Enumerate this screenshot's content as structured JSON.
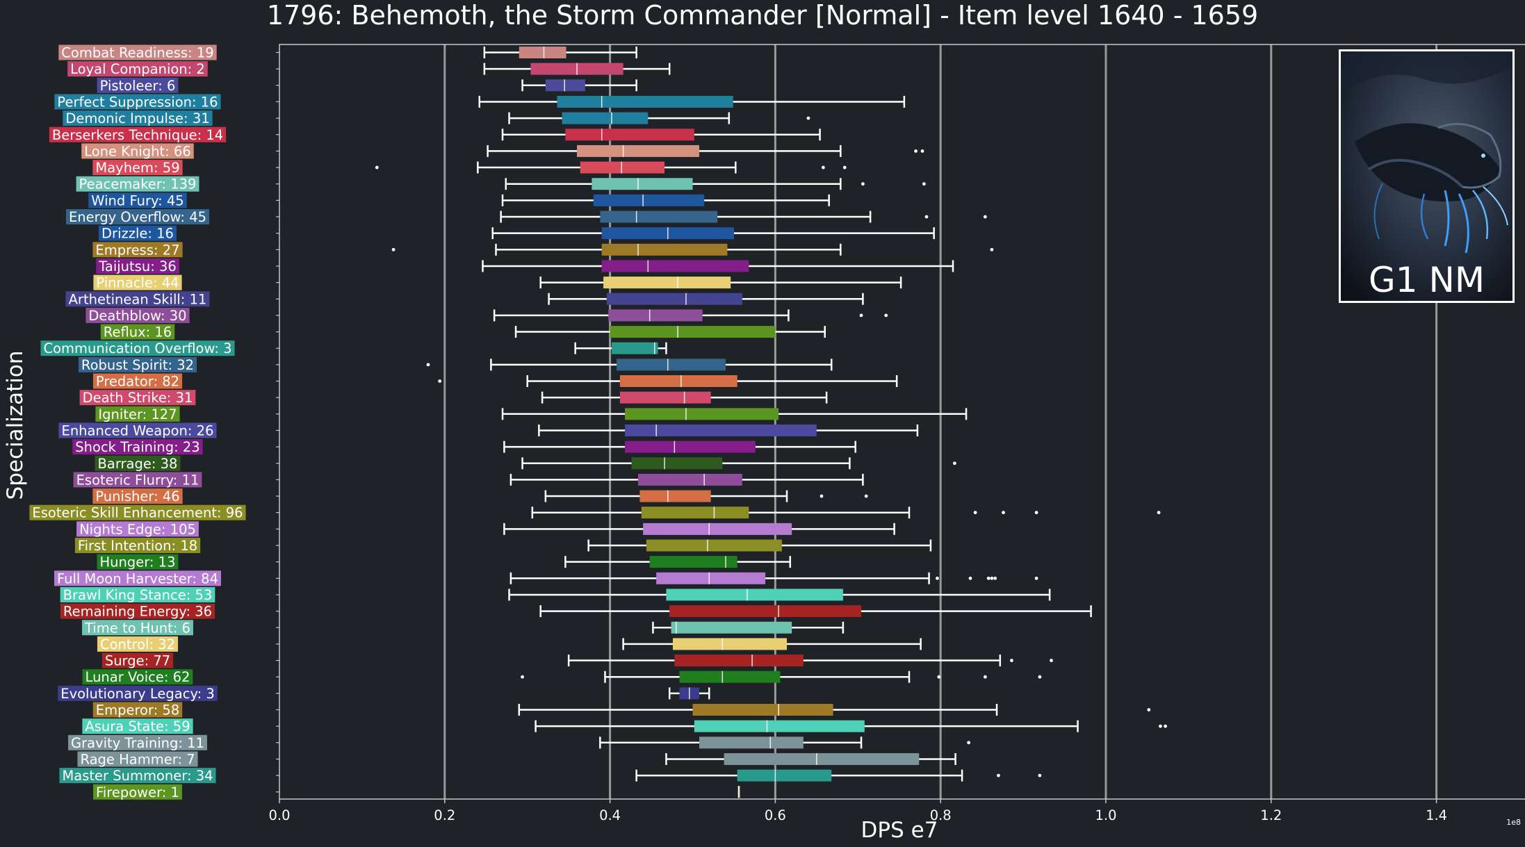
{
  "chart_data": {
    "type": "box",
    "title": "1796: Behemoth, the Storm Commander [Normal] - Item level 1640 - 1659",
    "xlabel": "DPS e7",
    "ylabel": "Specialization",
    "x_scale_label": "1e8",
    "xlim": [
      0,
      1.5
    ],
    "xticks": [
      "0.0",
      "0.2",
      "0.4",
      "0.6",
      "0.8",
      "1.0",
      "1.2",
      "1.4"
    ],
    "grid": "vertical",
    "orientation": "horizontal",
    "image_caption": "G1 NM",
    "specs": [
      {
        "label": "Combat Readiness: 19",
        "color": "#c98582",
        "lo": 0.248,
        "q1": 0.29,
        "med": 0.32,
        "q3": 0.347,
        "hi": 0.432,
        "outliers": []
      },
      {
        "label": "Loyal Companion: 2",
        "color": "#c4476f",
        "lo": 0.248,
        "q1": 0.304,
        "med": 0.36,
        "q3": 0.416,
        "hi": 0.472,
        "outliers": []
      },
      {
        "label": "Pistoleer: 6",
        "color": "#4c4a9a",
        "lo": 0.294,
        "q1": 0.322,
        "med": 0.345,
        "q3": 0.37,
        "hi": 0.432,
        "outliers": []
      },
      {
        "label": "Perfect Suppression: 16",
        "color": "#207f9f",
        "lo": 0.242,
        "q1": 0.336,
        "med": 0.39,
        "q3": 0.549,
        "hi": 0.756,
        "outliers": []
      },
      {
        "label": "Demonic Impulse: 31",
        "color": "#207f9f",
        "lo": 0.278,
        "q1": 0.342,
        "med": 0.402,
        "q3": 0.446,
        "hi": 0.544,
        "outliers": [
          0.64
        ]
      },
      {
        "label": "Berserkers Technique: 14",
        "color": "#c9304a",
        "lo": 0.27,
        "q1": 0.346,
        "med": 0.39,
        "q3": 0.502,
        "hi": 0.654,
        "outliers": []
      },
      {
        "label": "Lone Knight: 66",
        "color": "#d4917d",
        "lo": 0.252,
        "q1": 0.36,
        "med": 0.416,
        "q3": 0.508,
        "hi": 0.679,
        "outliers": [
          0.77,
          0.778
        ]
      },
      {
        "label": "Mayhem: 59",
        "color": "#d94a5a",
        "lo": 0.24,
        "q1": 0.364,
        "med": 0.414,
        "q3": 0.466,
        "hi": 0.552,
        "outliers": [
          0.118,
          0.658,
          0.684
        ]
      },
      {
        "label": "Peacemaker: 139",
        "color": "#6fc2b0",
        "lo": 0.274,
        "q1": 0.378,
        "med": 0.434,
        "q3": 0.5,
        "hi": 0.679,
        "outliers": [
          0.706,
          0.78
        ]
      },
      {
        "label": "Wind Fury: 45",
        "color": "#1e56a0",
        "lo": 0.27,
        "q1": 0.38,
        "med": 0.44,
        "q3": 0.514,
        "hi": 0.665,
        "outliers": []
      },
      {
        "label": "Energy Overflow: 45",
        "color": "#34638c",
        "lo": 0.268,
        "q1": 0.388,
        "med": 0.432,
        "q3": 0.53,
        "hi": 0.715,
        "outliers": [
          0.783,
          0.854
        ]
      },
      {
        "label": "Drizzle: 16",
        "color": "#1e56a0",
        "lo": 0.258,
        "q1": 0.39,
        "med": 0.47,
        "q3": 0.55,
        "hi": 0.792,
        "outliers": []
      },
      {
        "label": "Empress: 27",
        "color": "#9e7a26",
        "lo": 0.262,
        "q1": 0.39,
        "med": 0.434,
        "q3": 0.542,
        "hi": 0.679,
        "outliers": [
          0.138,
          0.862
        ]
      },
      {
        "label": "Taijutsu: 36",
        "color": "#851e8a",
        "lo": 0.246,
        "q1": 0.39,
        "med": 0.446,
        "q3": 0.568,
        "hi": 0.815,
        "outliers": []
      },
      {
        "label": "Pinnacle: 44",
        "color": "#e8cf73",
        "lo": 0.316,
        "q1": 0.392,
        "med": 0.482,
        "q3": 0.546,
        "hi": 0.752,
        "outliers": []
      },
      {
        "label": "Arthetinean Skill: 11",
        "color": "#434390",
        "lo": 0.326,
        "q1": 0.396,
        "med": 0.492,
        "q3": 0.56,
        "hi": 0.706,
        "outliers": []
      },
      {
        "label": "Deathblow: 30",
        "color": "#8f4e99",
        "lo": 0.26,
        "q1": 0.398,
        "med": 0.448,
        "q3": 0.512,
        "hi": 0.616,
        "outliers": [
          0.704,
          0.734
        ]
      },
      {
        "label": "Reflux: 16",
        "color": "#5c9620",
        "lo": 0.286,
        "q1": 0.4,
        "med": 0.482,
        "q3": 0.6,
        "hi": 0.66,
        "outliers": []
      },
      {
        "label": "Communication Overflow: 3",
        "color": "#2a9a8c",
        "lo": 0.358,
        "q1": 0.402,
        "med": 0.454,
        "q3": 0.458,
        "hi": 0.468,
        "outliers": []
      },
      {
        "label": "Robust Spirit: 32",
        "color": "#34638c",
        "lo": 0.256,
        "q1": 0.408,
        "med": 0.47,
        "q3": 0.54,
        "hi": 0.668,
        "outliers": [
          0.18
        ]
      },
      {
        "label": "Predator: 82",
        "color": "#d46e44",
        "lo": 0.3,
        "q1": 0.412,
        "med": 0.486,
        "q3": 0.554,
        "hi": 0.747,
        "outliers": [
          0.194
        ]
      },
      {
        "label": "Death Strike: 31",
        "color": "#d14a6b",
        "lo": 0.318,
        "q1": 0.412,
        "med": 0.49,
        "q3": 0.522,
        "hi": 0.662,
        "outliers": []
      },
      {
        "label": "Igniter: 127",
        "color": "#5c9620",
        "lo": 0.27,
        "q1": 0.418,
        "med": 0.492,
        "q3": 0.604,
        "hi": 0.831,
        "outliers": []
      },
      {
        "label": "Enhanced Weapon: 26",
        "color": "#4b4aa0",
        "lo": 0.314,
        "q1": 0.418,
        "med": 0.456,
        "q3": 0.65,
        "hi": 0.772,
        "outliers": []
      },
      {
        "label": "Shock Training: 23",
        "color": "#851e8a",
        "lo": 0.272,
        "q1": 0.418,
        "med": 0.478,
        "q3": 0.576,
        "hi": 0.697,
        "outliers": []
      },
      {
        "label": "Barrage: 38",
        "color": "#2e5a1f",
        "lo": 0.294,
        "q1": 0.426,
        "med": 0.466,
        "q3": 0.536,
        "hi": 0.69,
        "outliers": [
          0.817
        ]
      },
      {
        "label": "Esoteric Flurry: 11",
        "color": "#8f4e99",
        "lo": 0.28,
        "q1": 0.434,
        "med": 0.514,
        "q3": 0.56,
        "hi": 0.706,
        "outliers": []
      },
      {
        "label": "Punisher: 46",
        "color": "#d46e44",
        "lo": 0.322,
        "q1": 0.436,
        "med": 0.47,
        "q3": 0.522,
        "hi": 0.614,
        "outliers": [
          0.656,
          0.71
        ]
      },
      {
        "label": "Esoteric Skill Enhancement: 96",
        "color": "#8b8f23",
        "lo": 0.306,
        "q1": 0.438,
        "med": 0.526,
        "q3": 0.568,
        "hi": 0.762,
        "outliers": [
          0.842,
          0.876,
          0.916,
          1.064
        ]
      },
      {
        "label": "Nights Edge: 105",
        "color": "#b57bd2",
        "lo": 0.272,
        "q1": 0.44,
        "med": 0.52,
        "q3": 0.62,
        "hi": 0.744,
        "outliers": []
      },
      {
        "label": "First Intention: 18",
        "color": "#8b8f23",
        "lo": 0.374,
        "q1": 0.444,
        "med": 0.518,
        "q3": 0.608,
        "hi": 0.788,
        "outliers": []
      },
      {
        "label": "Hunger: 13",
        "color": "#1f7f1f",
        "lo": 0.346,
        "q1": 0.448,
        "med": 0.54,
        "q3": 0.554,
        "hi": 0.618,
        "outliers": []
      },
      {
        "label": "Full Moon Harvester: 84",
        "color": "#b57bd2",
        "lo": 0.28,
        "q1": 0.456,
        "med": 0.52,
        "q3": 0.588,
        "hi": 0.786,
        "outliers": [
          0.796,
          0.836,
          0.858,
          0.862,
          0.866,
          0.916
        ]
      },
      {
        "label": "Brawl King Stance: 53",
        "color": "#4fd1b8",
        "lo": 0.278,
        "q1": 0.468,
        "med": 0.566,
        "q3": 0.682,
        "hi": 0.932,
        "outliers": []
      },
      {
        "label": "Remaining Energy: 36",
        "color": "#a62424",
        "lo": 0.316,
        "q1": 0.472,
        "med": 0.604,
        "q3": 0.704,
        "hi": 0.982,
        "outliers": []
      },
      {
        "label": "Time to Hunt: 6",
        "color": "#6fc2b0",
        "lo": 0.452,
        "q1": 0.474,
        "med": 0.48,
        "q3": 0.62,
        "hi": 0.682,
        "outliers": []
      },
      {
        "label": "Control: 32",
        "color": "#e8cf73",
        "lo": 0.416,
        "q1": 0.476,
        "med": 0.536,
        "q3": 0.614,
        "hi": 0.776,
        "outliers": []
      },
      {
        "label": "Surge: 77",
        "color": "#a62424",
        "lo": 0.35,
        "q1": 0.478,
        "med": 0.572,
        "q3": 0.634,
        "hi": 0.872,
        "outliers": [
          0.886,
          0.934
        ]
      },
      {
        "label": "Lunar Voice: 62",
        "color": "#1f7f1f",
        "lo": 0.394,
        "q1": 0.484,
        "med": 0.536,
        "q3": 0.606,
        "hi": 0.762,
        "outliers": [
          0.294,
          0.798,
          0.854,
          0.92
        ]
      },
      {
        "label": "Evolutionary Legacy: 3",
        "color": "#3b3d8c",
        "lo": 0.472,
        "q1": 0.484,
        "med": 0.496,
        "q3": 0.508,
        "hi": 0.52,
        "outliers": []
      },
      {
        "label": "Emperor: 58",
        "color": "#9e7a26",
        "lo": 0.29,
        "q1": 0.5,
        "med": 0.604,
        "q3": 0.67,
        "hi": 0.868,
        "outliers": [
          1.052
        ]
      },
      {
        "label": "Asura State: 59",
        "color": "#4fd1b8",
        "lo": 0.31,
        "q1": 0.502,
        "med": 0.59,
        "q3": 0.708,
        "hi": 0.966,
        "outliers": [
          1.066,
          1.072
        ]
      },
      {
        "label": "Gravity Training: 11",
        "color": "#7d939a",
        "lo": 0.388,
        "q1": 0.508,
        "med": 0.594,
        "q3": 0.634,
        "hi": 0.704,
        "outliers": [
          0.834
        ]
      },
      {
        "label": "Rage Hammer: 7",
        "color": "#7d939a",
        "lo": 0.468,
        "q1": 0.538,
        "med": 0.65,
        "q3": 0.774,
        "hi": 0.818,
        "outliers": []
      },
      {
        "label": "Master Summoner: 34",
        "color": "#2a9a8c",
        "lo": 0.432,
        "q1": 0.554,
        "med": 0.6,
        "q3": 0.668,
        "hi": 0.826,
        "outliers": [
          0.87,
          0.92
        ]
      },
      {
        "label": "Firepower: 1",
        "color": "#5c9620",
        "lo": 0.556,
        "q1": 0.556,
        "med": 0.556,
        "q3": 0.556,
        "hi": 0.556,
        "outliers": []
      }
    ]
  }
}
